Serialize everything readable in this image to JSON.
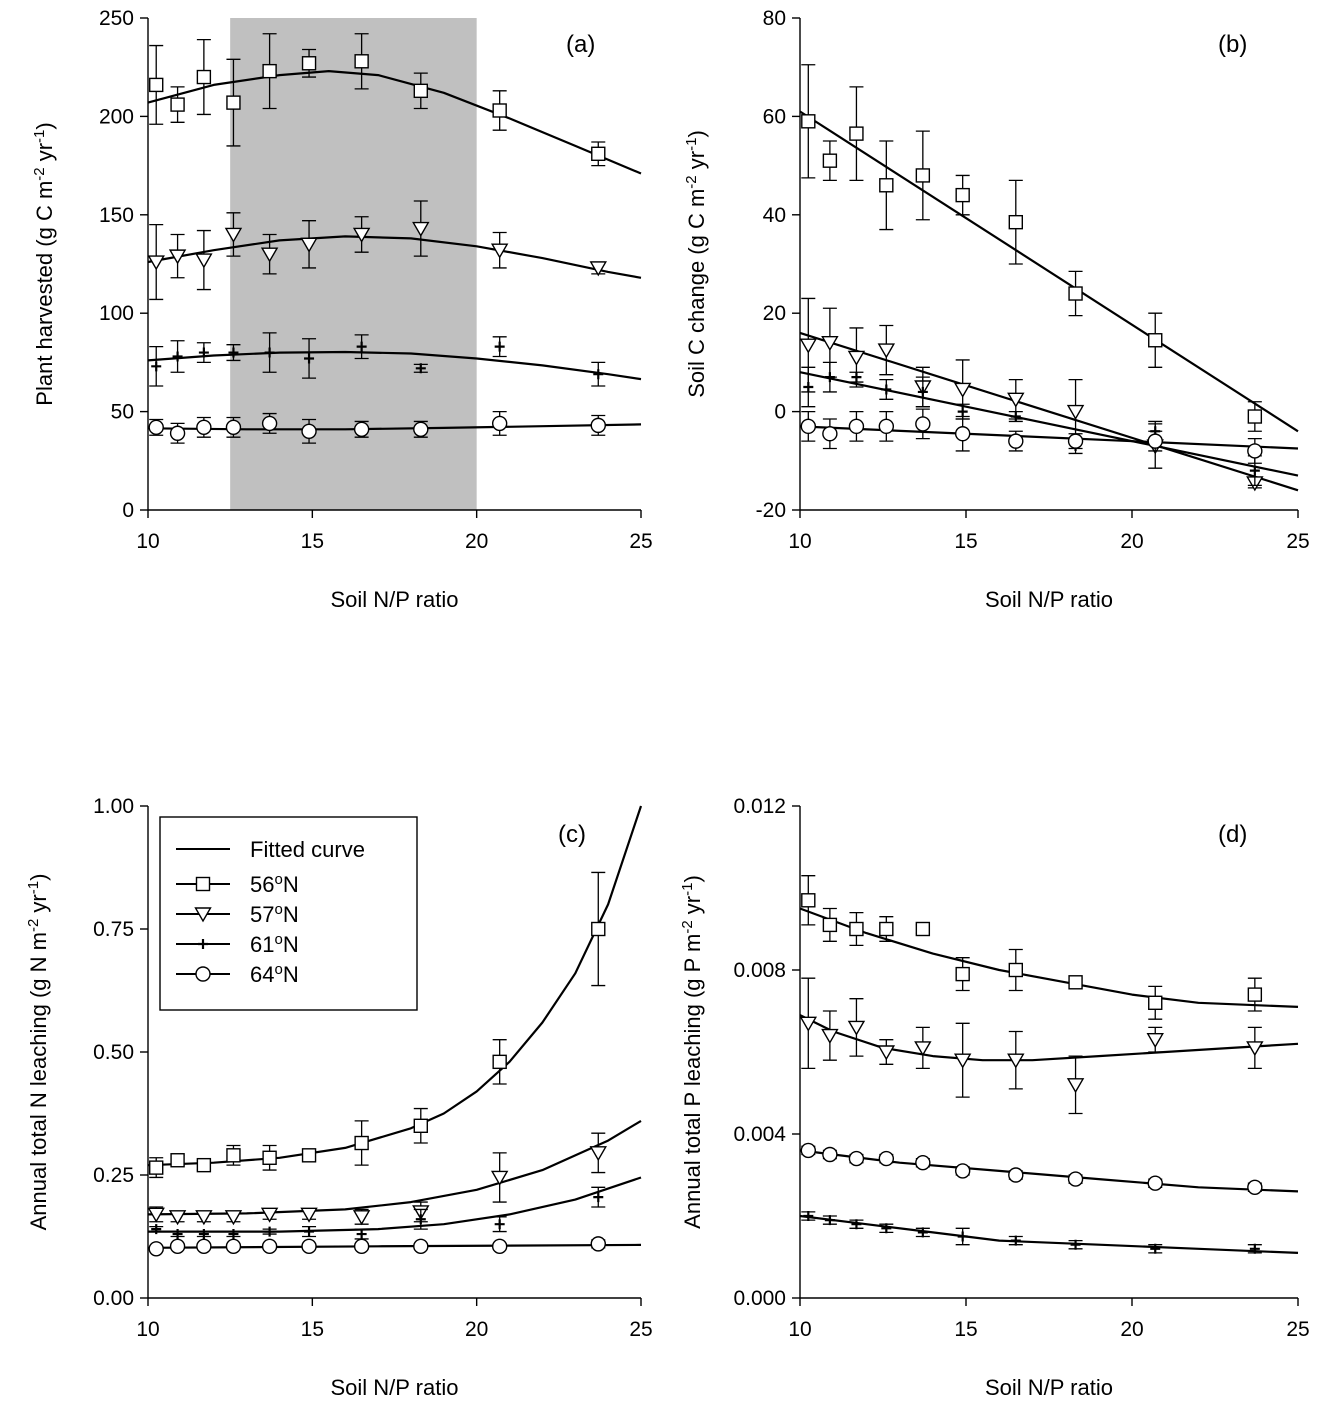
{
  "figure": {
    "description_free": true
  },
  "legend": {
    "entries": [
      {
        "label": "Fitted curve",
        "marker": "line"
      },
      {
        "label": "56",
        "sup": "o",
        "suffix": "N",
        "marker": "square"
      },
      {
        "label": "57",
        "sup": "o",
        "suffix": "N",
        "marker": "triangle"
      },
      {
        "label": "61",
        "sup": "o",
        "suffix": "N",
        "marker": "plus"
      },
      {
        "label": "64",
        "sup": "o",
        "suffix": "N",
        "marker": "circle"
      }
    ]
  },
  "chart_data": [
    {
      "id": "a",
      "type": "scatter",
      "tag": "(a)",
      "xlabel": "Soil N/P ratio",
      "ylabel": {
        "main": "Plant harvested (g C m",
        "sup1": "-2",
        "mid": " yr",
        "sup2": "-1",
        "end": ")"
      },
      "xlim": [
        10,
        25
      ],
      "ylim": [
        0,
        250
      ],
      "xticks": [
        10,
        15,
        20,
        25
      ],
      "xtick_labels": [
        "10",
        "15",
        "20",
        "25"
      ],
      "yticks": [
        0,
        50,
        100,
        150,
        200,
        250
      ],
      "ytick_labels": [
        "0",
        "50",
        "100",
        "150",
        "200",
        "250"
      ],
      "shaded_x_range": [
        12.5,
        20
      ],
      "x": [
        10.25,
        10.9,
        11.7,
        12.6,
        13.7,
        14.9,
        16.5,
        18.3,
        20.7,
        23.7
      ],
      "series": [
        {
          "name": "56oN",
          "marker": "square",
          "values": [
            216,
            206,
            220,
            207,
            223,
            227,
            228,
            213,
            203,
            181
          ],
          "errors": [
            20,
            9,
            19,
            22,
            19,
            7,
            14,
            9,
            10,
            6
          ],
          "fit": [
            [
              10,
              207
            ],
            [
              12,
              216
            ],
            [
              14,
              221
            ],
            [
              15.5,
              223
            ],
            [
              17,
              221
            ],
            [
              19,
              212
            ],
            [
              21,
              199
            ],
            [
              23,
              185
            ],
            [
              25,
              171
            ]
          ]
        },
        {
          "name": "57oN",
          "marker": "triangle",
          "values": [
            126,
            129,
            127,
            140,
            130,
            135,
            140,
            143,
            132,
            123
          ],
          "errors": [
            19,
            11,
            15,
            11,
            10,
            12,
            9,
            14,
            9,
            3
          ],
          "fit": [
            [
              10,
              126
            ],
            [
              12,
              132
            ],
            [
              14,
              137
            ],
            [
              16,
              139
            ],
            [
              18,
              138
            ],
            [
              20,
              134
            ],
            [
              22,
              128
            ],
            [
              24,
              121
            ],
            [
              25,
              118
            ]
          ]
        },
        {
          "name": "61oN",
          "marker": "plus",
          "values": [
            73,
            78,
            80,
            80,
            80,
            77,
            83,
            72,
            83,
            69
          ],
          "errors": [
            10,
            8,
            5,
            4,
            10,
            10,
            6,
            2,
            5,
            6
          ],
          "fit": [
            [
              10,
              76
            ],
            [
              12,
              78.5
            ],
            [
              14,
              80
            ],
            [
              16,
              80.3
            ],
            [
              18,
              79.5
            ],
            [
              20,
              77
            ],
            [
              22,
              73.5
            ],
            [
              24,
              69
            ],
            [
              25,
              66.5
            ]
          ]
        },
        {
          "name": "64oN",
          "marker": "circle",
          "values": [
            42,
            39,
            42,
            42,
            44,
            40,
            41,
            41,
            44,
            43
          ],
          "errors": [
            4,
            5,
            5,
            5,
            5,
            6,
            4,
            4,
            6,
            5
          ],
          "fit": [
            [
              10,
              41.5
            ],
            [
              13,
              41
            ],
            [
              16,
              41
            ],
            [
              19,
              41.7
            ],
            [
              22,
              42.6
            ],
            [
              25,
              43.5
            ]
          ]
        }
      ]
    },
    {
      "id": "b",
      "type": "scatter",
      "tag": "(b)",
      "xlabel": "Soil N/P ratio",
      "ylabel": {
        "main": "Soil C change (g C m",
        "sup1": "-2",
        "mid": " yr",
        "sup2": "-1",
        "end": ")"
      },
      "xlim": [
        10,
        25
      ],
      "ylim": [
        -20,
        80
      ],
      "xticks": [
        10,
        15,
        20,
        25
      ],
      "xtick_labels": [
        "10",
        "15",
        "20",
        "25"
      ],
      "yticks": [
        -20,
        0,
        20,
        40,
        60,
        80
      ],
      "ytick_labels": [
        "-20",
        "0",
        "20",
        "40",
        "60",
        "80"
      ],
      "x": [
        10.25,
        10.9,
        11.7,
        12.6,
        13.7,
        14.9,
        16.5,
        18.3,
        20.7,
        23.7
      ],
      "series": [
        {
          "name": "56oN",
          "marker": "square",
          "values": [
            59,
            51,
            56.5,
            46,
            48,
            44,
            38.5,
            24,
            14.5,
            -1
          ],
          "errors": [
            11.5,
            4,
            9.5,
            9,
            9,
            4,
            8.5,
            4.5,
            5.5,
            3
          ],
          "fit": [
            [
              10,
              61
            ],
            [
              25,
              -4
            ]
          ]
        },
        {
          "name": "57oN",
          "marker": "triangle",
          "values": [
            13.5,
            14,
            11,
            12.5,
            5,
            4.5,
            2.5,
            0,
            -7,
            -14.5
          ],
          "errors": [
            9.5,
            7,
            6,
            5,
            4,
            6,
            4,
            6.5,
            4.5,
            1
          ],
          "fit": [
            [
              10,
              16
            ],
            [
              25,
              -16
            ]
          ]
        },
        {
          "name": "61oN",
          "marker": "plus",
          "values": [
            5,
            7,
            7,
            4.5,
            4,
            0,
            -1,
            -7,
            -4,
            -12
          ],
          "errors": [
            4,
            3,
            1,
            2,
            3,
            1.5,
            1,
            1.5,
            2,
            3
          ],
          "fit": [
            [
              10,
              8
            ],
            [
              25,
              -13
            ]
          ]
        },
        {
          "name": "64oN",
          "marker": "circle",
          "values": [
            -3,
            -4.5,
            -3,
            -3,
            -2.5,
            -4.5,
            -6,
            -6,
            -6,
            -8
          ],
          "errors": [
            3,
            3,
            3,
            3,
            3,
            3.5,
            2,
            1.5,
            2,
            2.5
          ],
          "fit": [
            [
              10,
              -3
            ],
            [
              25,
              -7.5
            ]
          ]
        }
      ]
    },
    {
      "id": "c",
      "type": "scatter",
      "tag": "(c)",
      "xlabel": "Soil N/P ratio",
      "ylabel": {
        "main": "Annual total N leaching (g N m",
        "sup1": "-2",
        "mid": " yr",
        "sup2": "-1",
        "end": ")"
      },
      "xlim": [
        10,
        25
      ],
      "ylim": [
        0,
        1
      ],
      "xticks": [
        10,
        15,
        20,
        25
      ],
      "xtick_labels": [
        "10",
        "15",
        "20",
        "25"
      ],
      "yticks": [
        0,
        0.25,
        0.5,
        0.75,
        1
      ],
      "ytick_labels": [
        "0.00",
        "0.25",
        "0.50",
        "0.75",
        "1.00"
      ],
      "has_legend": true,
      "x": [
        10.25,
        10.9,
        11.7,
        12.6,
        13.7,
        14.9,
        16.5,
        18.3,
        20.7,
        23.7
      ],
      "series": [
        {
          "name": "56oN",
          "marker": "square",
          "values": [
            0.265,
            0.28,
            0.27,
            0.29,
            0.285,
            0.29,
            0.315,
            0.35,
            0.48,
            0.75
          ],
          "errors": [
            0.02,
            0.01,
            0.01,
            0.02,
            0.025,
            0.01,
            0.045,
            0.035,
            0.045,
            0.115
          ],
          "fit": [
            [
              10,
              0.27
            ],
            [
              12,
              0.275
            ],
            [
              14,
              0.285
            ],
            [
              16,
              0.305
            ],
            [
              18,
              0.345
            ],
            [
              19,
              0.375
            ],
            [
              20,
              0.42
            ],
            [
              21,
              0.48
            ],
            [
              22,
              0.56
            ],
            [
              23,
              0.66
            ],
            [
              24,
              0.8
            ],
            [
              25,
              1.0
            ]
          ]
        },
        {
          "name": "57oN",
          "marker": "triangle",
          "values": [
            0.17,
            0.165,
            0.165,
            0.165,
            0.17,
            0.17,
            0.165,
            0.175,
            0.245,
            0.295
          ],
          "errors": [
            0.015,
            0.01,
            0.01,
            0.01,
            0.01,
            0.01,
            0.015,
            0.02,
            0.05,
            0.04
          ],
          "fit": [
            [
              10,
              0.17
            ],
            [
              13,
              0.172
            ],
            [
              16,
              0.18
            ],
            [
              18,
              0.195
            ],
            [
              20,
              0.22
            ],
            [
              22,
              0.26
            ],
            [
              24,
              0.32
            ],
            [
              25,
              0.36
            ]
          ]
        },
        {
          "name": "61oN",
          "marker": "plus",
          "values": [
            0.14,
            0.13,
            0.13,
            0.13,
            0.135,
            0.135,
            0.13,
            0.16,
            0.15,
            0.205
          ],
          "errors": [
            0.005,
            0.005,
            0.005,
            0.005,
            0.005,
            0.01,
            0.01,
            0.02,
            0.015,
            0.02
          ],
          "fit": [
            [
              10,
              0.135
            ],
            [
              14,
              0.135
            ],
            [
              17,
              0.14
            ],
            [
              19,
              0.15
            ],
            [
              21,
              0.17
            ],
            [
              23,
              0.2
            ],
            [
              25,
              0.245
            ]
          ]
        },
        {
          "name": "64oN",
          "marker": "circle",
          "values": [
            0.1,
            0.105,
            0.105,
            0.105,
            0.105,
            0.105,
            0.105,
            0.105,
            0.105,
            0.11
          ],
          "errors": [
            0.005,
            0.005,
            0.005,
            0.005,
            0.005,
            0.005,
            0.005,
            0.005,
            0.005,
            0.008
          ],
          "fit": [
            [
              10,
              0.102
            ],
            [
              17,
              0.105
            ],
            [
              25,
              0.108
            ]
          ]
        }
      ]
    },
    {
      "id": "d",
      "type": "scatter",
      "tag": "(d)",
      "xlabel": "Soil N/P ratio",
      "ylabel": {
        "main": "Annual total P leaching (g P m",
        "sup1": "-2",
        "mid": " yr",
        "sup2": "-1",
        "end": ")"
      },
      "xlim": [
        10,
        25
      ],
      "ylim": [
        0,
        0.012
      ],
      "xticks": [
        10,
        15,
        20,
        25
      ],
      "xtick_labels": [
        "10",
        "15",
        "20",
        "25"
      ],
      "yticks": [
        0,
        0.004,
        0.008,
        0.012
      ],
      "ytick_labels": [
        "0.000",
        "0.004",
        "0.008",
        "0.012"
      ],
      "x": [
        10.25,
        10.9,
        11.7,
        12.6,
        13.7,
        14.9,
        16.5,
        18.3,
        20.7,
        23.7
      ],
      "series": [
        {
          "name": "56oN",
          "marker": "square",
          "values": [
            0.0097,
            0.0091,
            0.009,
            0.009,
            0.009,
            0.0079,
            0.008,
            0.0077,
            0.0072,
            0.0074
          ],
          "errors": [
            0.0006,
            0.0004,
            0.0004,
            0.0003,
            0.0001,
            0.0004,
            0.0005,
            0.0001,
            0.0004,
            0.0004
          ],
          "fit": [
            [
              10,
              0.0095
            ],
            [
              12,
              0.0089
            ],
            [
              14,
              0.0084
            ],
            [
              16,
              0.008
            ],
            [
              18,
              0.0077
            ],
            [
              20,
              0.0074
            ],
            [
              22,
              0.0072
            ],
            [
              25,
              0.0071
            ]
          ]
        },
        {
          "name": "57oN",
          "marker": "triangle",
          "values": [
            0.0067,
            0.0064,
            0.0066,
            0.006,
            0.0061,
            0.0058,
            0.0058,
            0.0052,
            0.0063,
            0.0061
          ],
          "errors": [
            0.0011,
            0.0006,
            0.0007,
            0.0003,
            0.0005,
            0.0009,
            0.0007,
            0.0007,
            0.0003,
            0.0005
          ],
          "fit": [
            [
              10,
              0.0069
            ],
            [
              11,
              0.0065
            ],
            [
              12.5,
              0.0061
            ],
            [
              14,
              0.0059
            ],
            [
              15.5,
              0.0058
            ],
            [
              17,
              0.0058
            ],
            [
              19,
              0.0059
            ],
            [
              21,
              0.006
            ],
            [
              23,
              0.0061
            ],
            [
              25,
              0.0062
            ]
          ]
        },
        {
          "name": "64oN",
          "marker": "circle",
          "values": [
            0.0036,
            0.0035,
            0.0034,
            0.0034,
            0.0033,
            0.0031,
            0.003,
            0.0029,
            0.0028,
            0.0027
          ],
          "errors": [
            0.0001,
            0.0001,
            0.0001,
            0.0001,
            0.0001,
            0.0001,
            0.0001,
            0.0001,
            0.0001,
            0.0001
          ],
          "fit": [
            [
              10,
              0.0036
            ],
            [
              13,
              0.0033
            ],
            [
              16,
              0.0031
            ],
            [
              19,
              0.0029
            ],
            [
              22,
              0.0027
            ],
            [
              25,
              0.0026
            ]
          ]
        },
        {
          "name": "61oN",
          "marker": "plus",
          "values": [
            0.002,
            0.0019,
            0.0018,
            0.0017,
            0.0016,
            0.0015,
            0.0014,
            0.0013,
            0.0012,
            0.0012
          ],
          "errors": [
            0.0001,
            0.0001,
            0.0001,
            0.0001,
            0.0001,
            0.0002,
            0.0001,
            0.0001,
            0.0001,
            0.0001
          ],
          "fit": [
            [
              10,
              0.002
            ],
            [
              12,
              0.0018
            ],
            [
              14,
              0.0016
            ],
            [
              16,
              0.0014
            ],
            [
              19,
              0.0013
            ],
            [
              22,
              0.0012
            ],
            [
              25,
              0.0011
            ]
          ]
        }
      ]
    }
  ]
}
